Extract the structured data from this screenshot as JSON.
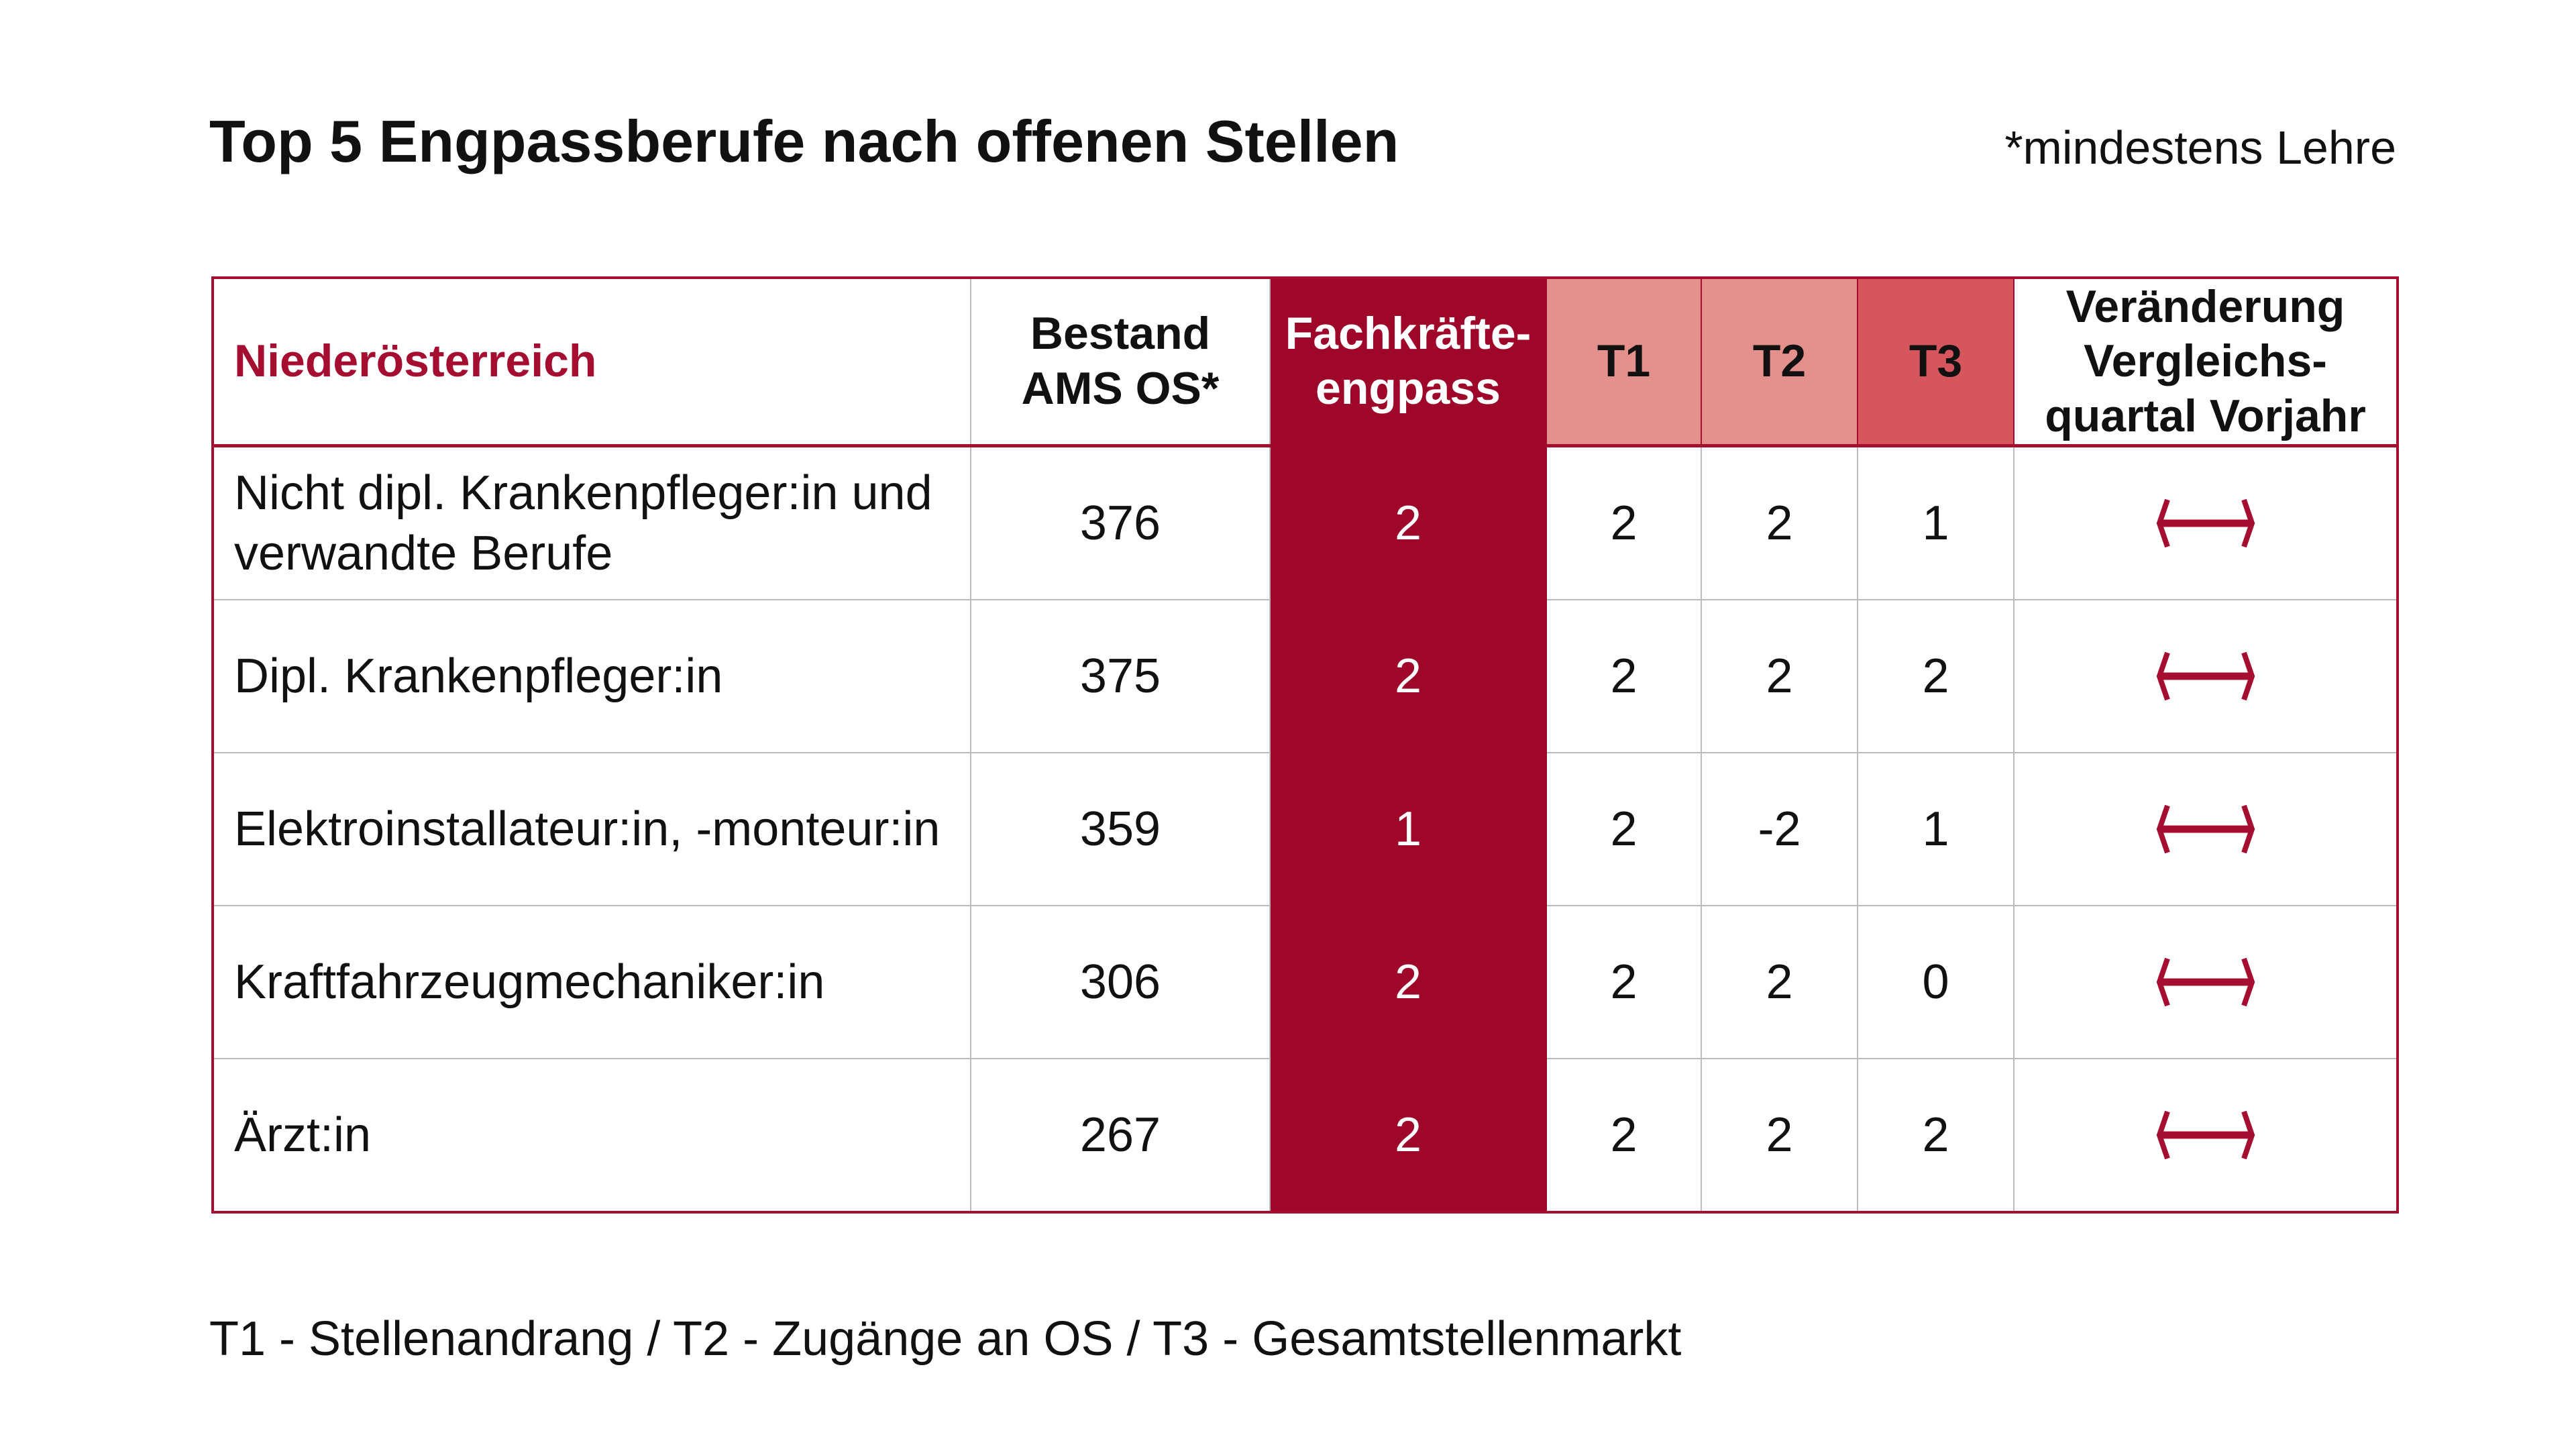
{
  "title": "Top 5 Engpassberufe nach offenen Stellen",
  "note": "*mindestens Lehre",
  "colors": {
    "accent": "#9e0729",
    "t12": "#e4908c",
    "t3": "#d6565e"
  },
  "headers": {
    "region": "Niederösterreich",
    "bestand": "Bestand AMS OS*",
    "fk": "Fachkräfte-engpass",
    "t1": "T1",
    "t2": "T2",
    "t3": "T3",
    "change": "Veränderung Vergleichs-quartal Vorjahr"
  },
  "rows": [
    {
      "occ": "Nicht dipl. Krankenpfleger:in und verwandte Berufe",
      "bestand": "376",
      "fk": "2",
      "t1": "2",
      "t2": "2",
      "t3": "1",
      "change": "unchanged-arrow-icon"
    },
    {
      "occ": "Dipl. Krankenpfleger:in",
      "bestand": "375",
      "fk": "2",
      "t1": "2",
      "t2": "2",
      "t3": "2",
      "change": "unchanged-arrow-icon"
    },
    {
      "occ": "Elektroinstallateur:in, -monteur:in",
      "bestand": "359",
      "fk": "1",
      "t1": "2",
      "t2": "-2",
      "t3": "1",
      "change": "unchanged-arrow-icon"
    },
    {
      "occ": "Kraftfahrzeugmechaniker:in",
      "bestand": "306",
      "fk": "2",
      "t1": "2",
      "t2": "2",
      "t3": "0",
      "change": "unchanged-arrow-icon"
    },
    {
      "occ": "Ärzt:in",
      "bestand": "267",
      "fk": "2",
      "t1": "2",
      "t2": "2",
      "t3": "2",
      "change": "unchanged-arrow-icon"
    }
  ],
  "footer": "T1 - Stellenandrang / T2 - Zugänge an OS / T3 - Gesamtstellenmarkt"
}
